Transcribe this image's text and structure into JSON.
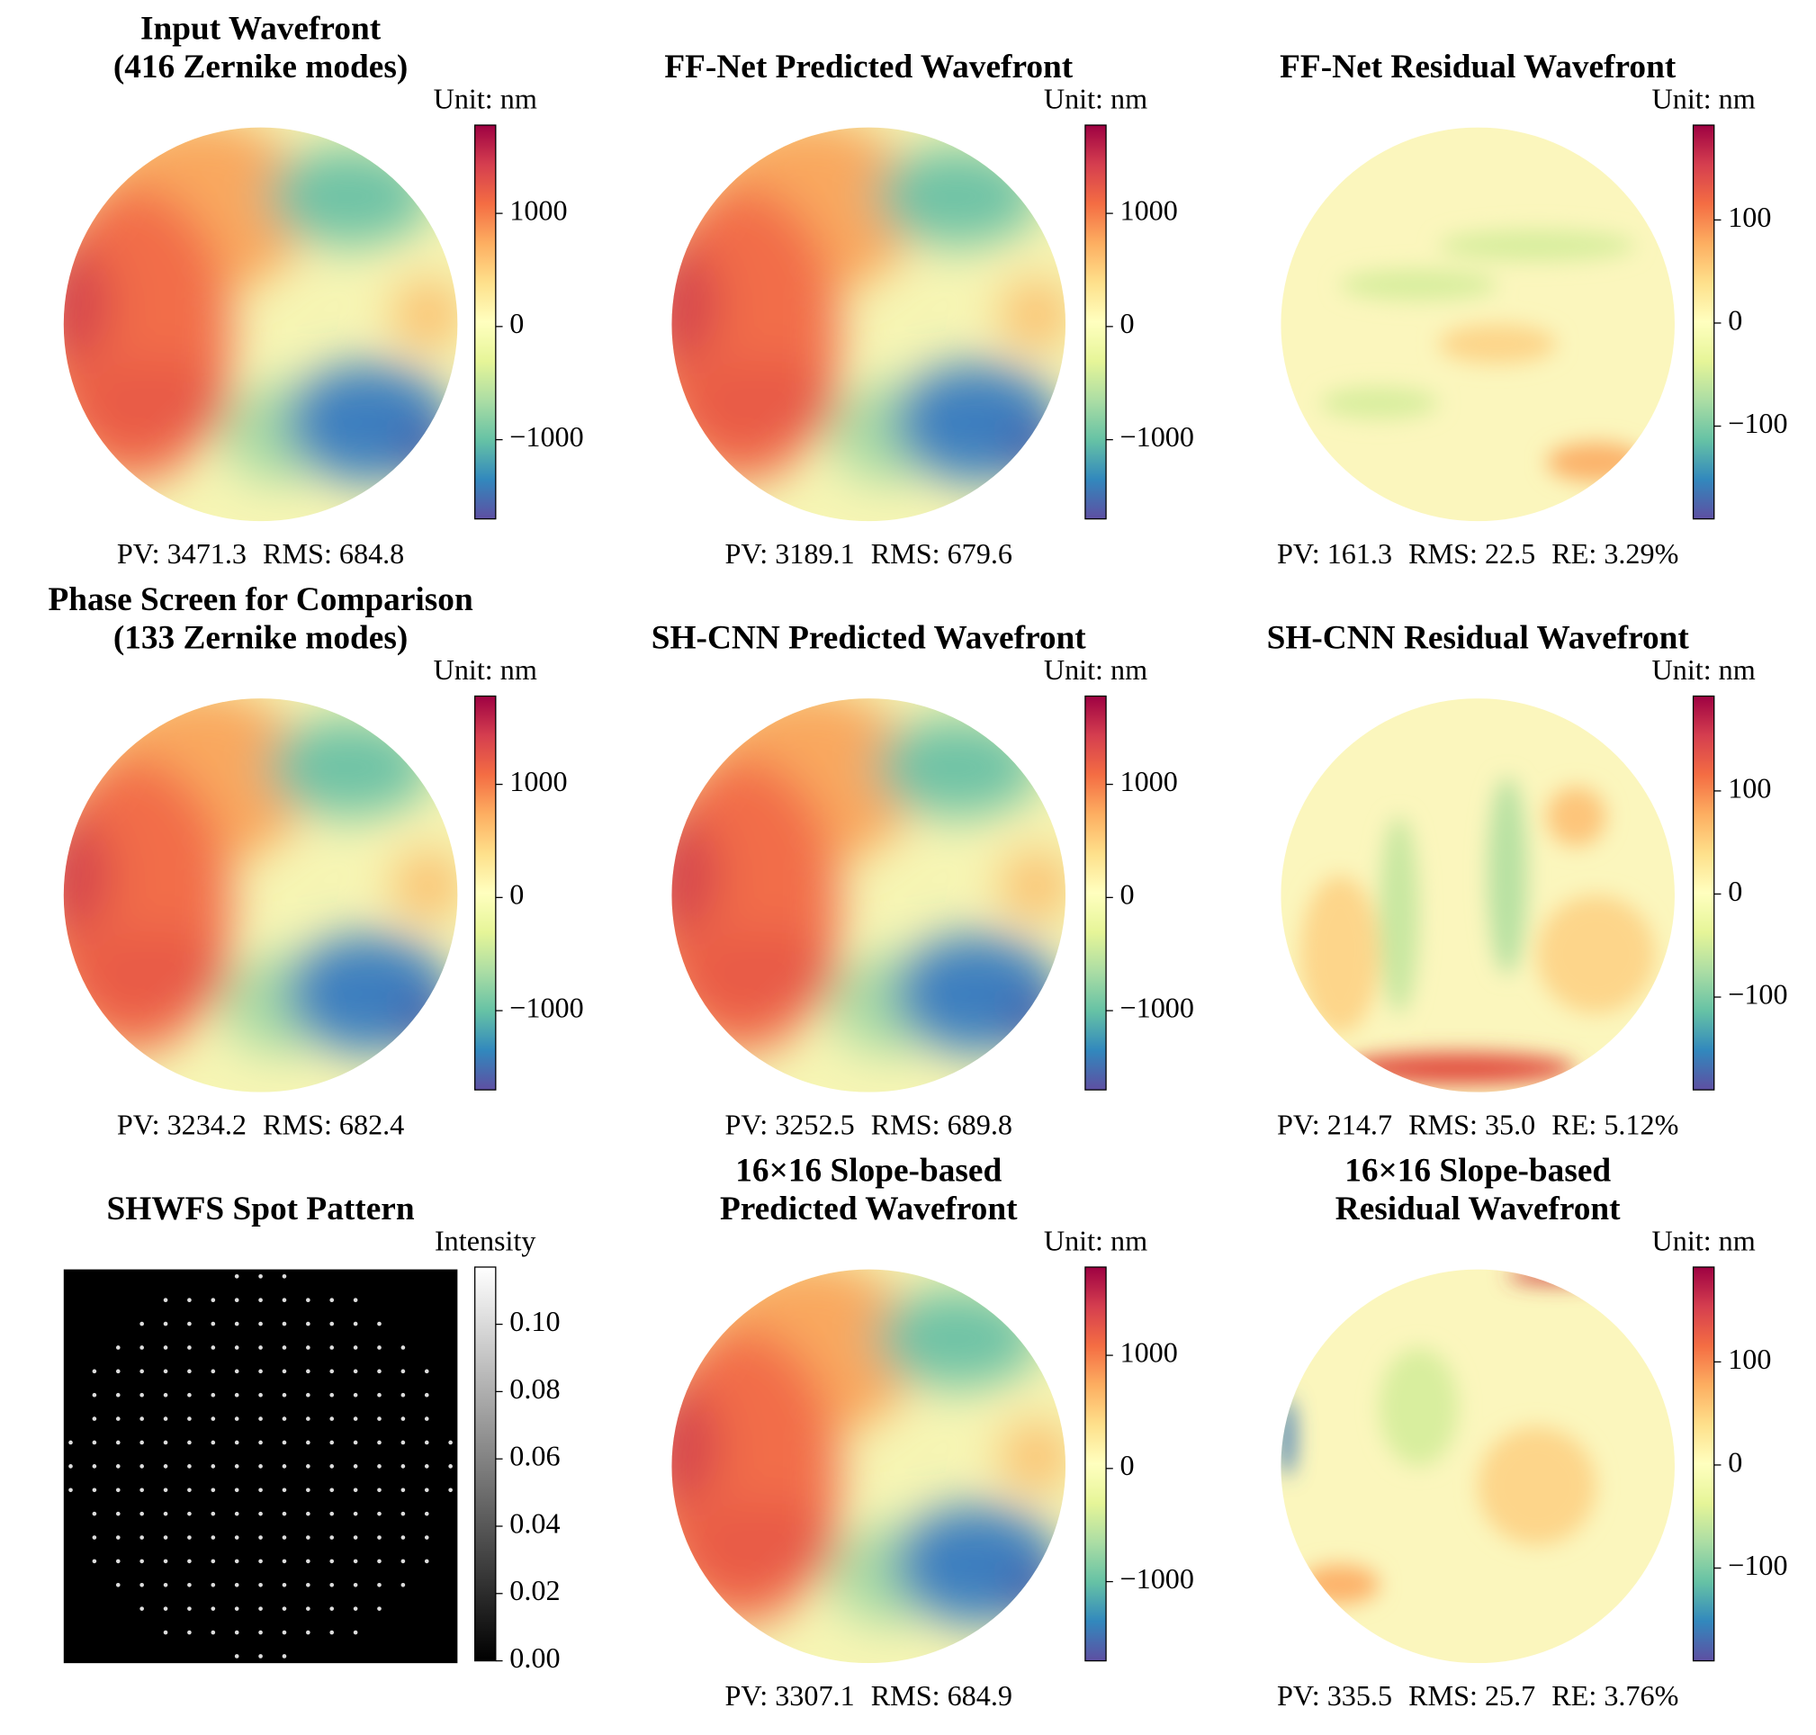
{
  "chart_data": [
    {
      "type": "heatmap",
      "title": [
        "Input Wavefront",
        "(416 Zernike modes)"
      ],
      "colorbar_label": "Unit: nm",
      "colormap": "Spectral_r",
      "clim": [
        -1700,
        1780
      ],
      "ticks": [
        {
          "value": -1000,
          "label": "−1000"
        },
        0,
        1000
      ],
      "stats": [
        "PV: 3471.3",
        "RMS: 684.8"
      ]
    },
    {
      "type": "heatmap",
      "title": [
        "FF-Net Predicted Wavefront"
      ],
      "colorbar_label": "Unit: nm",
      "colormap": "Spectral_r",
      "clim": [
        -1700,
        1780
      ],
      "ticks": [
        {
          "value": -1000,
          "label": "−1000"
        },
        0,
        1000
      ],
      "stats": [
        "PV: 3189.1",
        "RMS: 679.6"
      ]
    },
    {
      "type": "heatmap",
      "title": [
        "FF-Net Residual Wavefront"
      ],
      "colorbar_label": "Unit: nm",
      "colormap": "Spectral_r",
      "clim": [
        -190,
        192
      ],
      "ticks": [
        {
          "value": -100,
          "label": "−100"
        },
        0,
        100
      ],
      "stats": [
        "PV: 161.3",
        "RMS: 22.5",
        "RE: 3.29%"
      ]
    },
    {
      "type": "heatmap",
      "title": [
        "Phase Screen for Comparison",
        "(133 Zernike modes)"
      ],
      "colorbar_label": "Unit: nm",
      "colormap": "Spectral_r",
      "clim": [
        -1700,
        1780
      ],
      "ticks": [
        {
          "value": -1000,
          "label": "−1000"
        },
        0,
        1000
      ],
      "stats": [
        "PV: 3234.2",
        "RMS: 682.4"
      ]
    },
    {
      "type": "heatmap",
      "title": [
        "SH-CNN Predicted Wavefront"
      ],
      "colorbar_label": "Unit: nm",
      "colormap": "Spectral_r",
      "clim": [
        -1700,
        1780
      ],
      "ticks": [
        {
          "value": -1000,
          "label": "−1000"
        },
        0,
        1000
      ],
      "stats": [
        "PV: 3252.5",
        "RMS: 689.8"
      ]
    },
    {
      "type": "heatmap",
      "title": [
        "SH-CNN Residual Wavefront"
      ],
      "colorbar_label": "Unit: nm",
      "colormap": "Spectral_r",
      "clim": [
        -190,
        192
      ],
      "ticks": [
        {
          "value": -100,
          "label": "−100"
        },
        0,
        100
      ],
      "stats": [
        "PV: 214.7",
        "RMS: 35.0",
        "RE: 5.12%"
      ]
    },
    {
      "type": "spots",
      "title": [
        "SHWFS Spot Pattern"
      ],
      "colorbar_label": "Intensity",
      "colormap": "gray",
      "clim": [
        0,
        0.117
      ],
      "ticks": [
        {
          "value": 0,
          "label": "0.00"
        },
        {
          "value": 0.02,
          "label": "0.02"
        },
        {
          "value": 0.04,
          "label": "0.04"
        },
        {
          "value": 0.06,
          "label": "0.06"
        },
        {
          "value": 0.08,
          "label": "0.08"
        },
        {
          "value": 0.1,
          "label": "0.10"
        }
      ]
    },
    {
      "type": "heatmap",
      "title": [
        "16×16 Slope-based",
        "Predicted Wavefront"
      ],
      "colorbar_label": "Unit: nm",
      "colormap": "Spectral_r",
      "clim": [
        -1700,
        1780
      ],
      "ticks": [
        {
          "value": -1000,
          "label": "−1000"
        },
        0,
        1000
      ],
      "stats": [
        "PV: 3307.1",
        "RMS: 684.9"
      ]
    },
    {
      "type": "heatmap",
      "title": [
        "16×16 Slope-based",
        "Residual Wavefront"
      ],
      "colorbar_label": "Unit: nm",
      "colormap": "Spectral_r",
      "clim": [
        -190,
        192
      ],
      "ticks": [
        {
          "value": -100,
          "label": "−100"
        },
        0,
        100
      ],
      "stats": [
        "PV: 335.5",
        "RMS: 25.7",
        "RE: 3.76%"
      ]
    }
  ]
}
